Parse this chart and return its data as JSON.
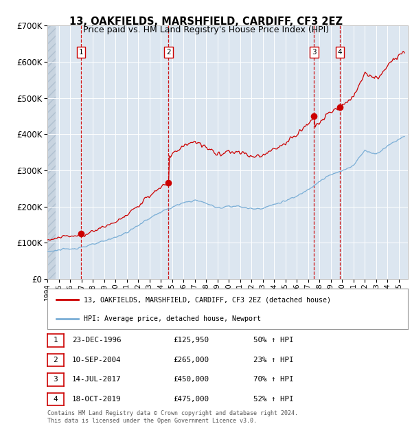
{
  "title": "13, OAKFIELDS, MARSHFIELD, CARDIFF, CF3 2EZ",
  "subtitle": "Price paid vs. HM Land Registry's House Price Index (HPI)",
  "title_fontsize": 10.5,
  "subtitle_fontsize": 9,
  "ylim": [
    0,
    700000
  ],
  "yticks": [
    0,
    100000,
    200000,
    300000,
    400000,
    500000,
    600000,
    700000
  ],
  "ytick_labels": [
    "£0",
    "£100K",
    "£200K",
    "£300K",
    "£400K",
    "£500K",
    "£600K",
    "£700K"
  ],
  "xlim_start": 1994.0,
  "xlim_end": 2025.8,
  "background_color": "#ffffff",
  "chart_bg_color": "#dce6f0",
  "grid_color": "#ffffff",
  "red_line_color": "#cc0000",
  "blue_line_color": "#7aaed6",
  "transactions": [
    {
      "num": 1,
      "date": "23-DEC-1996",
      "price": 125950,
      "year": 1996.97,
      "pct": "50%",
      "direction": "↑"
    },
    {
      "num": 2,
      "date": "10-SEP-2004",
      "price": 265000,
      "year": 2004.69,
      "pct": "23%",
      "direction": "↑"
    },
    {
      "num": 3,
      "date": "14-JUL-2017",
      "price": 450000,
      "year": 2017.53,
      "pct": "70%",
      "direction": "↑"
    },
    {
      "num": 4,
      "date": "18-OCT-2019",
      "price": 475000,
      "year": 2019.79,
      "pct": "52%",
      "direction": "↑"
    }
  ],
  "legend_label_red": "13, OAKFIELDS, MARSHFIELD, CARDIFF, CF3 2EZ (detached house)",
  "legend_label_blue": "HPI: Average price, detached house, Newport",
  "footer": "Contains HM Land Registry data © Crown copyright and database right 2024.\nThis data is licensed under the Open Government Licence v3.0.",
  "xtick_years": [
    1994,
    1995,
    1996,
    1997,
    1998,
    1999,
    2000,
    2001,
    2002,
    2003,
    2004,
    2005,
    2006,
    2007,
    2008,
    2009,
    2010,
    2011,
    2012,
    2013,
    2014,
    2015,
    2016,
    2017,
    2018,
    2019,
    2020,
    2021,
    2022,
    2023,
    2024,
    2025
  ]
}
